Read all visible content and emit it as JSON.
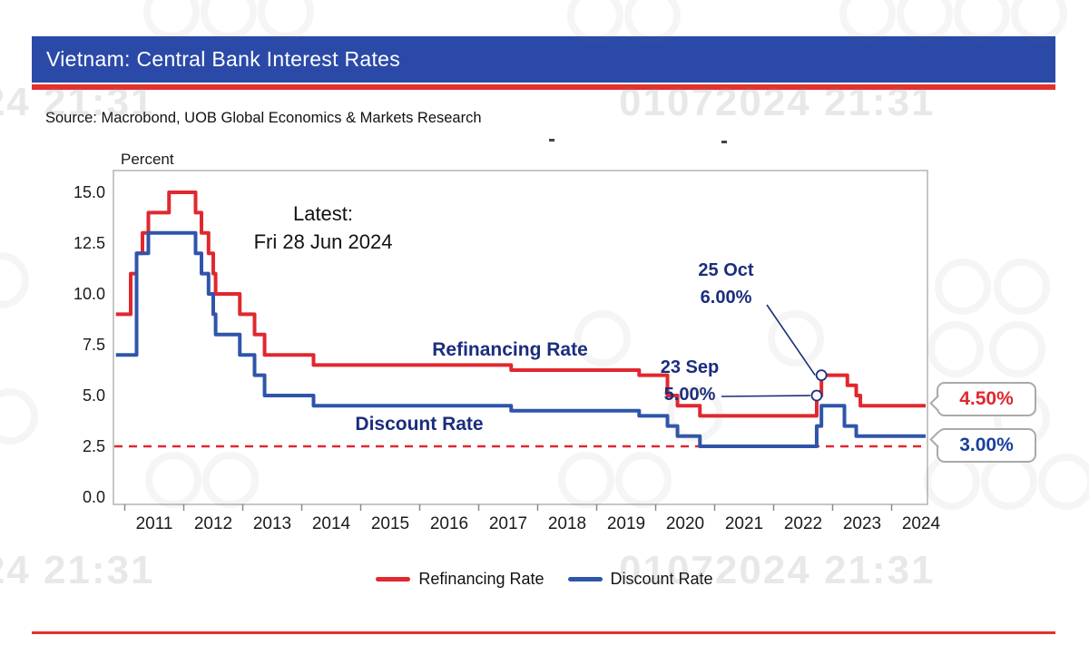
{
  "header": {
    "title": "Vietnam: Central Bank Interest Rates",
    "bar_color": "#2b4aa8",
    "rule_color": "#e4302c"
  },
  "source": "Source: Macrobond, UOB Global Economics & Markets Research",
  "watermark_text": "01072024 21:31",
  "chart_data": {
    "type": "line",
    "title": "Vietnam: Central Bank Interest Rates",
    "ylabel": "Percent",
    "ylim": [
      0,
      16
    ],
    "yticks": [
      0,
      2.5,
      5,
      7.5,
      10,
      12.5,
      15
    ],
    "xticks": [
      2011,
      2012,
      2013,
      2014,
      2015,
      2016,
      2017,
      2018,
      2019,
      2020,
      2021,
      2022,
      2023,
      2024
    ],
    "grid": false,
    "legend_position": "bottom",
    "dashed_line": {
      "y": 2.5,
      "color": "#e0282e",
      "style": "dashed"
    },
    "series": [
      {
        "name": "Refinancing Rate",
        "color": "#e0282e",
        "step": true,
        "points": [
          [
            2010.85,
            9
          ],
          [
            2011.1,
            11
          ],
          [
            2011.2,
            12
          ],
          [
            2011.3,
            13
          ],
          [
            2011.4,
            14
          ],
          [
            2011.75,
            15
          ],
          [
            2012.2,
            14
          ],
          [
            2012.3,
            13
          ],
          [
            2012.42,
            12
          ],
          [
            2012.5,
            11
          ],
          [
            2012.54,
            10
          ],
          [
            2012.95,
            9
          ],
          [
            2013.2,
            8
          ],
          [
            2013.37,
            7
          ],
          [
            2014.2,
            6.5
          ],
          [
            2017.55,
            6.25
          ],
          [
            2019.72,
            6
          ],
          [
            2020.2,
            5
          ],
          [
            2020.37,
            4.5
          ],
          [
            2020.75,
            4
          ],
          [
            2022.73,
            5
          ],
          [
            2022.81,
            6
          ],
          [
            2023.25,
            5.5
          ],
          [
            2023.4,
            5
          ],
          [
            2023.47,
            4.5
          ],
          [
            2024.58,
            4.5
          ]
        ]
      },
      {
        "name": "Discount Rate",
        "color": "#2f55aa",
        "step": true,
        "points": [
          [
            2010.85,
            7
          ],
          [
            2011.2,
            12
          ],
          [
            2011.4,
            13
          ],
          [
            2012.2,
            12
          ],
          [
            2012.3,
            11
          ],
          [
            2012.42,
            10
          ],
          [
            2012.5,
            9
          ],
          [
            2012.54,
            8
          ],
          [
            2012.95,
            7
          ],
          [
            2013.2,
            6
          ],
          [
            2013.37,
            5
          ],
          [
            2014.2,
            4.5
          ],
          [
            2017.55,
            4.25
          ],
          [
            2019.72,
            4
          ],
          [
            2020.2,
            3.5
          ],
          [
            2020.37,
            3
          ],
          [
            2020.75,
            2.5
          ],
          [
            2022.73,
            3.5
          ],
          [
            2022.81,
            4.5
          ],
          [
            2023.2,
            3.5
          ],
          [
            2023.4,
            3
          ],
          [
            2024.58,
            3
          ]
        ]
      }
    ],
    "annotations": [
      {
        "id": "latest",
        "lines": [
          "Latest:",
          "Fri 28 Jun 2024"
        ],
        "color": "#111111"
      },
      {
        "id": "refinancing-label",
        "lines": [
          "Refinancing Rate"
        ],
        "color": "#1b2d7d"
      },
      {
        "id": "discount-label",
        "lines": [
          "Discount Rate"
        ],
        "color": "#1b2d7d"
      },
      {
        "id": "oct-25",
        "lines": [
          "25 Oct",
          "6.00%"
        ],
        "color": "#1b2d7d",
        "points_to": {
          "x": 2022.81,
          "y": 6
        }
      },
      {
        "id": "sep-23",
        "lines": [
          "23 Sep",
          "5.00%"
        ],
        "color": "#1b2d7d",
        "points_to": {
          "x": 2022.73,
          "y": 5
        }
      }
    ],
    "end_labels": [
      {
        "id": "refinancing",
        "text": "4.50%",
        "color": "#e0282e"
      },
      {
        "id": "discount",
        "text": "3.00%",
        "color": "#1c3f9e"
      }
    ]
  },
  "legend": [
    {
      "label": "Refinancing Rate",
      "color": "#e0282e"
    },
    {
      "label": "Discount Rate",
      "color": "#2f55aa"
    }
  ]
}
